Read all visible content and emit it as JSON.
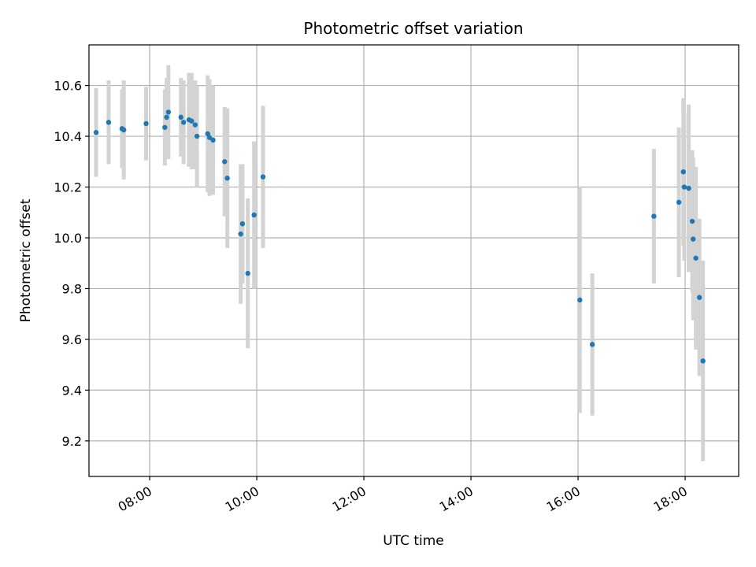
{
  "chart_data": {
    "type": "scatter",
    "title": "Photometric offset variation",
    "xlabel": "UTC time",
    "ylabel": "Photometric offset",
    "x_ticks": [
      "08:00",
      "10:00",
      "12:00",
      "14:00",
      "16:00",
      "18:00"
    ],
    "y_ticks": [
      "9.2",
      "9.4",
      "9.6",
      "9.8",
      "10.0",
      "10.2",
      "10.4",
      "10.6"
    ],
    "x_tick_values": [
      "08:00",
      "10:00",
      "12:00",
      "14:00",
      "16:00",
      "18:00"
    ],
    "y_tick_values": [
      9.2,
      9.4,
      9.6,
      9.8,
      10.0,
      10.2,
      10.4,
      10.6
    ],
    "xlim": [
      "06:52",
      "19:00"
    ],
    "ylim": [
      9.06,
      10.76
    ],
    "grid": true,
    "colors": {
      "point": "#1f77b4",
      "errorbar": "#d3d3d3",
      "grid": "#b0b0b0"
    },
    "series": [
      {
        "x": [
          "07:00",
          "07:14",
          "07:29",
          "07:31",
          "07:56",
          "08:17",
          "08:19",
          "08:21",
          "08:35",
          "08:38",
          "08:44",
          "08:47",
          "08:51",
          "08:53",
          "09:05",
          "09:07",
          "09:11",
          "09:24",
          "09:27",
          "09:42",
          "09:44",
          "09:50",
          "09:57",
          "10:07",
          "16:02",
          "16:16",
          "17:25",
          "17:53",
          "17:58",
          "17:59",
          "18:04",
          "18:08",
          "18:09",
          "18:12",
          "18:16",
          "18:20"
        ],
        "y": [
          10.415,
          10.455,
          10.43,
          10.425,
          10.45,
          10.435,
          10.475,
          10.495,
          10.475,
          10.455,
          10.465,
          10.46,
          10.445,
          10.4,
          10.41,
          10.395,
          10.385,
          10.3,
          10.235,
          10.015,
          10.055,
          9.86,
          10.09,
          10.24,
          9.755,
          9.58,
          10.085,
          10.14,
          10.26,
          10.2,
          10.195,
          10.065,
          9.995,
          9.92,
          9.765,
          9.515
        ],
        "yerr": [
          0.175,
          0.165,
          0.155,
          0.195,
          0.145,
          0.15,
          0.155,
          0.185,
          0.155,
          0.165,
          0.185,
          0.19,
          0.175,
          0.2,
          0.23,
          0.23,
          0.215,
          0.215,
          0.275,
          0.275,
          0.235,
          0.295,
          0.29,
          0.28,
          0.445,
          0.28,
          0.265,
          0.295,
          0.29,
          0.29,
          0.33,
          0.28,
          0.32,
          0.36,
          0.31,
          0.395
        ]
      }
    ]
  }
}
